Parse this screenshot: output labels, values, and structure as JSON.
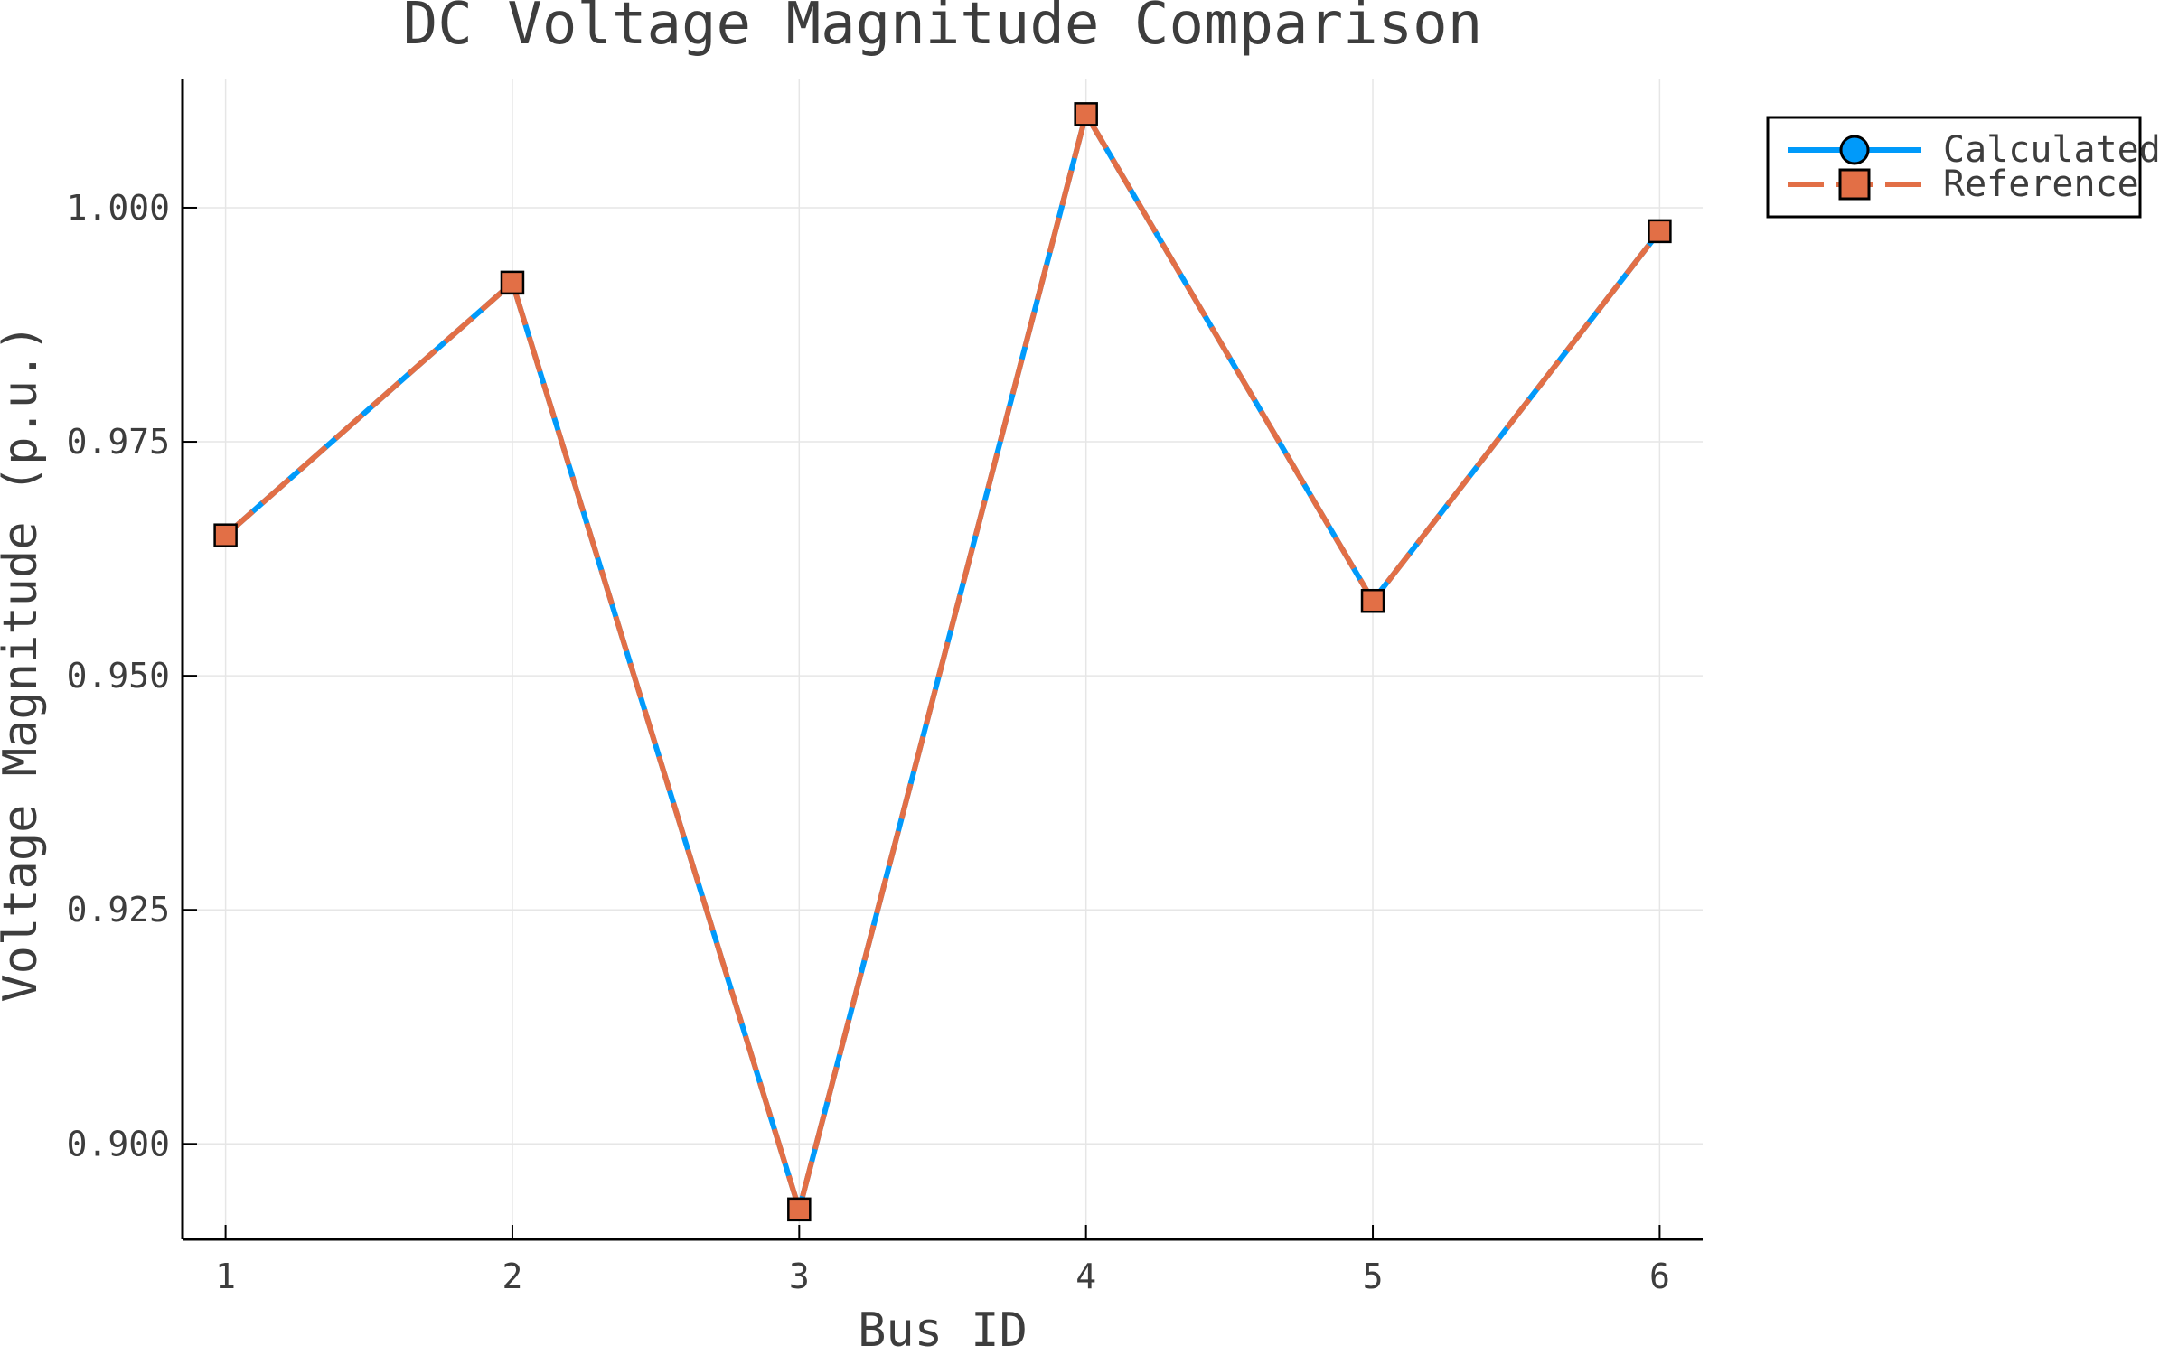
{
  "chart_data": {
    "type": "line",
    "title": "DC Voltage Magnitude Comparison",
    "xlabel": "Bus ID",
    "ylabel": "Voltage Magnitude (p.u.)",
    "x": [
      1,
      2,
      3,
      4,
      5,
      6
    ],
    "xticks": [
      1,
      2,
      3,
      4,
      5,
      6
    ],
    "xlim": [
      0.85,
      6.15
    ],
    "ylim": [
      0.8898,
      1.0137
    ],
    "yticks": [
      0.9,
      0.925,
      0.95,
      0.975,
      1.0
    ],
    "ytick_labels": [
      "0.900",
      "0.925",
      "0.950",
      "0.975",
      "1.000"
    ],
    "grid": true,
    "legend_position": "top-right, outside plot area",
    "series": [
      {
        "name": "Calculated",
        "values": [
          0.965,
          0.992,
          0.893,
          1.01,
          0.958,
          0.9975
        ],
        "color": "#009AFA",
        "marker": "circle",
        "line_style": "solid"
      },
      {
        "name": "Reference",
        "values": [
          0.965,
          0.992,
          0.893,
          1.01,
          0.958,
          0.9975
        ],
        "color": "#E26F46",
        "marker": "square",
        "line_style": "dashed"
      }
    ]
  }
}
